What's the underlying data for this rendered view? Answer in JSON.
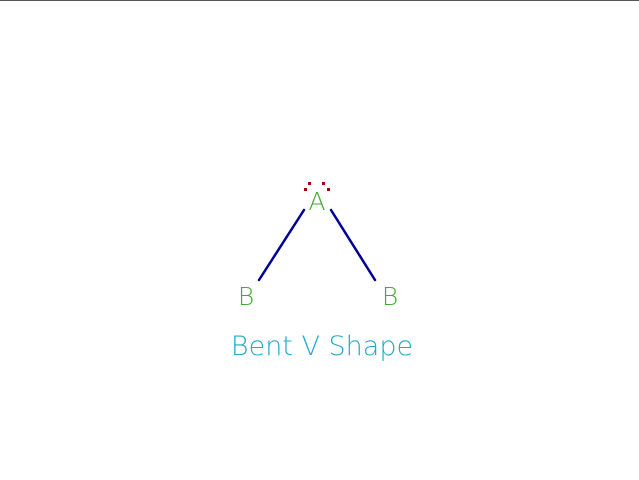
{
  "molecule": {
    "central_atom": "A",
    "outer_atom_left": "B",
    "outer_atom_right": "B",
    "lone_pair_count": 1,
    "caption": "Bent V Shape"
  },
  "colors": {
    "atom_label": "#44aa33",
    "bond": "#000099",
    "lone_pair": "#aa0000",
    "caption": "#22aacc",
    "background": "#ffffff"
  }
}
